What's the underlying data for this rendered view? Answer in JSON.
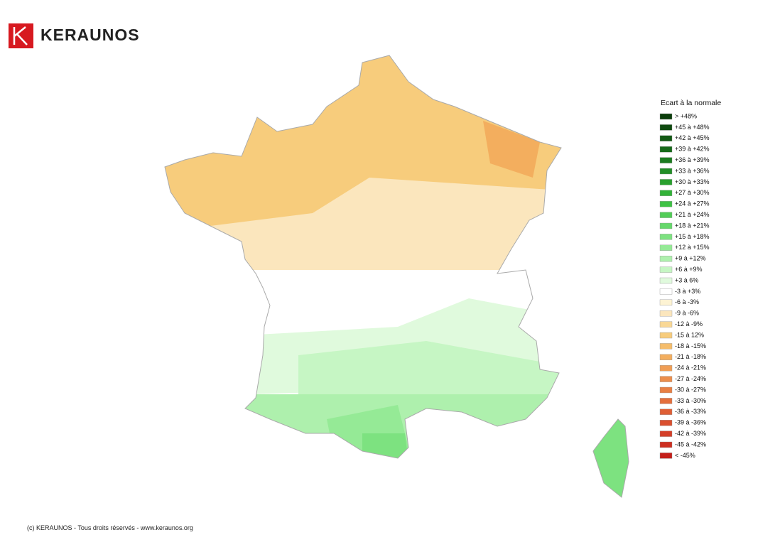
{
  "logo": {
    "name": "KERAUNOS"
  },
  "legend": {
    "title": "Ecart à la normale",
    "items": [
      {
        "label": "> +48%",
        "color": "#0b3d0b"
      },
      {
        "label": "+45 à +48%",
        "color": "#0f4a10"
      },
      {
        "label": "+42 à +45%",
        "color": "#135a15"
      },
      {
        "label": "+39 à +42%",
        "color": "#176a1a"
      },
      {
        "label": "+36 à +39%",
        "color": "#1c7c20"
      },
      {
        "label": "+33 à +36%",
        "color": "#228e27"
      },
      {
        "label": "+30 à +33%",
        "color": "#29a02e"
      },
      {
        "label": "+27 à +30%",
        "color": "#32b338"
      },
      {
        "label": "+24 à +27%",
        "color": "#3fc245"
      },
      {
        "label": "+21 à +24%",
        "color": "#52cd57"
      },
      {
        "label": "+18 à +21%",
        "color": "#66d86b"
      },
      {
        "label": "+15 à +18%",
        "color": "#7de280"
      },
      {
        "label": "+12 à +15%",
        "color": "#95ea96"
      },
      {
        "label": "+9 à +12%",
        "color": "#aef0ad"
      },
      {
        "label": "+6 à +9%",
        "color": "#c6f6c4"
      },
      {
        "label": "+3 à 6%",
        "color": "#e0fadd"
      },
      {
        "label": "-3 à +3%",
        "color": "#ffffff"
      },
      {
        "label": "-6 à -3%",
        "color": "#fdf3d3"
      },
      {
        "label": "-9 à -6%",
        "color": "#fbe6bd"
      },
      {
        "label": "-12 à -9%",
        "color": "#f9d896"
      },
      {
        "label": "-15 à 12%",
        "color": "#f7cc7c"
      },
      {
        "label": "-18 à -15%",
        "color": "#f5bd6b"
      },
      {
        "label": "-21 à -18%",
        "color": "#f3ae5e"
      },
      {
        "label": "-24 à -21%",
        "color": "#f09e55"
      },
      {
        "label": "-27 à -24%",
        "color": "#ec8e4c"
      },
      {
        "label": "-30 à -27%",
        "color": "#e87f44"
      },
      {
        "label": "-33 à -30%",
        "color": "#e46f3d"
      },
      {
        "label": "-36 à -33%",
        "color": "#df5f36"
      },
      {
        "label": "-39 à -36%",
        "color": "#da4f2f"
      },
      {
        "label": "-42 à -39%",
        "color": "#d43f28"
      },
      {
        "label": "-45 à -42%",
        "color": "#cd2f21"
      },
      {
        "label": "< -45%",
        "color": "#c41f1a"
      }
    ]
  },
  "footer": "(c) KERAUNOS - Tous droits réservés - www.keraunos.org"
}
